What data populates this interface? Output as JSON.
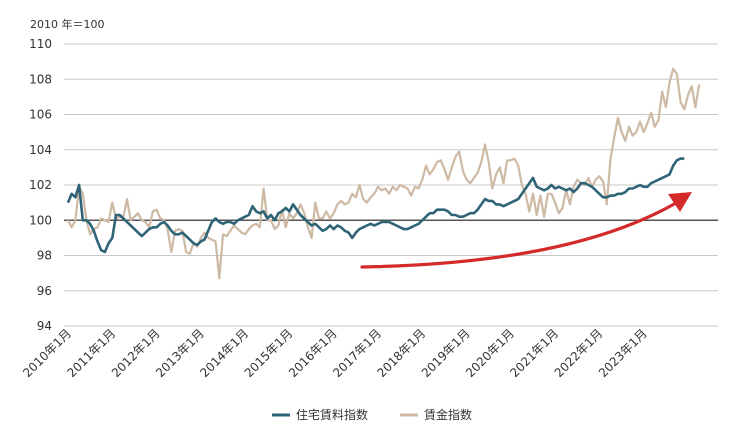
{
  "chart_data": {
    "type": "line",
    "unit_label": "2010 年＝100",
    "ylim": [
      94,
      110
    ],
    "y_ticks": [
      94,
      96,
      98,
      100,
      102,
      104,
      106,
      108,
      110
    ],
    "x_tick_labels": [
      "2010年1月",
      "2011年1月",
      "2012年1月",
      "2013年1月",
      "2014年1月",
      "2015年1月",
      "2016年1月",
      "2017年1月",
      "2018年1月",
      "2019年1月",
      "2020年1月",
      "2021年1月",
      "2022年1月",
      "2023年1月"
    ],
    "grid": true,
    "legend_position": "bottom",
    "baseline": 100,
    "annotation": "upward-trend-arrow",
    "series": [
      {
        "name": "住宅賃料指数",
        "color": "#2f6477",
        "start": "2010-01",
        "values": [
          101.0,
          101.5,
          101.3,
          102.0,
          100.0,
          100.0,
          99.8,
          99.4,
          98.8,
          98.3,
          98.2,
          98.7,
          99.0,
          100.3,
          100.3,
          100.1,
          99.9,
          99.7,
          99.5,
          99.3,
          99.1,
          99.3,
          99.5,
          99.6,
          99.6,
          99.8,
          99.9,
          99.7,
          99.4,
          99.2,
          99.2,
          99.3,
          99.1,
          98.9,
          98.7,
          98.6,
          98.8,
          98.9,
          99.4,
          99.9,
          100.1,
          99.9,
          99.8,
          99.9,
          99.9,
          99.8,
          100.0,
          100.1,
          100.2,
          100.3,
          100.8,
          100.5,
          100.4,
          100.5,
          100.1,
          100.3,
          100.0,
          100.4,
          100.5,
          100.7,
          100.5,
          100.9,
          100.6,
          100.3,
          100.1,
          99.9,
          99.7,
          99.8,
          99.6,
          99.4,
          99.5,
          99.7,
          99.5,
          99.7,
          99.6,
          99.4,
          99.3,
          99.0,
          99.3,
          99.5,
          99.6,
          99.7,
          99.8,
          99.7,
          99.8,
          99.9,
          99.9,
          99.9,
          99.8,
          99.7,
          99.6,
          99.5,
          99.5,
          99.6,
          99.7,
          99.8,
          100.0,
          100.2,
          100.4,
          100.4,
          100.6,
          100.6,
          100.6,
          100.5,
          100.3,
          100.3,
          100.2,
          100.2,
          100.3,
          100.4,
          100.4,
          100.6,
          100.9,
          101.2,
          101.1,
          101.1,
          100.9,
          100.9,
          100.8,
          100.9,
          101.0,
          101.1,
          101.2,
          101.5,
          101.8,
          102.1,
          102.4,
          101.9,
          101.8,
          101.7,
          101.8,
          102.0,
          101.8,
          101.9,
          101.8,
          101.7,
          101.8,
          101.6,
          101.8,
          102.1,
          102.1,
          102.0,
          101.9,
          101.7,
          101.5,
          101.3,
          101.3,
          101.4,
          101.4,
          101.5,
          101.5,
          101.6,
          101.8,
          101.8,
          101.9,
          102.0,
          101.9,
          101.9,
          102.1,
          102.2,
          102.3,
          102.4,
          102.5,
          102.6,
          103.1,
          103.4,
          103.5,
          103.5
        ]
      },
      {
        "name": "賃金指数",
        "color": "#cdb9a4",
        "start": "2010-01",
        "values": [
          100.0,
          99.6,
          100.0,
          101.9,
          101.5,
          100.0,
          99.2,
          99.5,
          99.6,
          100.1,
          100.0,
          99.9,
          101.0,
          100.1,
          100.2,
          100.2,
          101.2,
          100.0,
          100.2,
          100.4,
          100.0,
          99.9,
          99.6,
          100.5,
          100.6,
          100.1,
          100.0,
          99.5,
          98.2,
          99.4,
          99.5,
          99.4,
          98.2,
          98.1,
          98.7,
          98.5,
          99.0,
          99.3,
          99.0,
          98.9,
          98.8,
          96.7,
          99.2,
          99.1,
          99.4,
          99.7,
          99.5,
          99.3,
          99.2,
          99.5,
          99.7,
          99.8,
          99.6,
          101.8,
          100.0,
          100.0,
          99.5,
          99.7,
          100.6,
          99.6,
          100.4,
          100.1,
          100.4,
          100.9,
          100.4,
          99.6,
          99.0,
          101.0,
          100.1,
          100.1,
          100.5,
          100.1,
          100.4,
          100.9,
          101.1,
          100.9,
          101.0,
          101.5,
          101.3,
          102.0,
          101.2,
          101.0,
          101.3,
          101.5,
          101.9,
          101.7,
          101.8,
          101.5,
          101.9,
          101.7,
          102.0,
          101.9,
          101.8,
          101.4,
          101.9,
          101.8,
          102.3,
          103.1,
          102.6,
          102.9,
          103.3,
          103.4,
          102.9,
          102.3,
          103.0,
          103.6,
          103.9,
          102.8,
          102.3,
          102.1,
          102.4,
          102.7,
          103.3,
          104.3,
          103.3,
          101.8,
          102.6,
          103.0,
          102.1,
          103.4,
          103.4,
          103.5,
          103.1,
          102.0,
          101.5,
          100.5,
          101.5,
          100.3,
          101.4,
          100.2,
          101.5,
          101.5,
          101.0,
          100.4,
          100.7,
          101.7,
          100.9,
          101.9,
          102.3,
          102.1,
          102.0,
          102.4,
          101.9,
          102.3,
          102.5,
          102.2,
          100.9,
          103.5,
          104.7,
          105.8,
          105.0,
          104.5,
          105.3,
          104.8,
          105.0,
          105.6,
          105.0,
          105.5,
          106.1,
          105.3,
          105.7,
          107.3,
          106.4,
          107.8,
          108.6,
          108.3,
          106.7,
          106.3,
          107.1,
          107.6,
          106.4,
          107.7
        ]
      }
    ]
  }
}
